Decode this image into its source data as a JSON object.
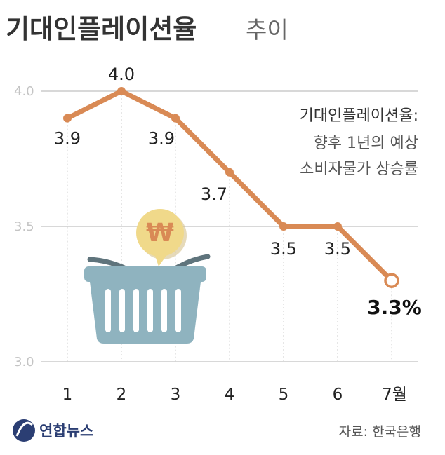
{
  "chart_data": {
    "type": "line",
    "title": "기대인플레이션율",
    "subtitle": "추이",
    "categories": [
      "1",
      "2",
      "3",
      "4",
      "5",
      "6",
      "7월"
    ],
    "values": [
      3.9,
      4.0,
      3.9,
      3.7,
      3.5,
      3.5,
      3.3
    ],
    "data_labels": [
      "3.9",
      "4.0",
      "3.9",
      "3.7",
      "3.5",
      "3.5",
      "3.3%"
    ],
    "yticks": [
      "3.0",
      "3.5",
      "4.0"
    ],
    "ylim": [
      3.0,
      4.0
    ],
    "grid": "horizontal",
    "annotation": {
      "title": "기대인플레이션율:",
      "lines": [
        "향후 1년의 예상",
        "소비자물가 상승률"
      ]
    },
    "source": "자료: 한국은행",
    "line_color": "#d98a55"
  },
  "logo": {
    "text": "연합뉴스",
    "color": "#2b3e73"
  },
  "illustration": {
    "coin_icon": "won-coin-icon",
    "coin_symbol": "₩",
    "basket_icon": "shopping-basket-icon",
    "basket_color": "#8fb3bf",
    "coin_color": "#f0d98a"
  }
}
